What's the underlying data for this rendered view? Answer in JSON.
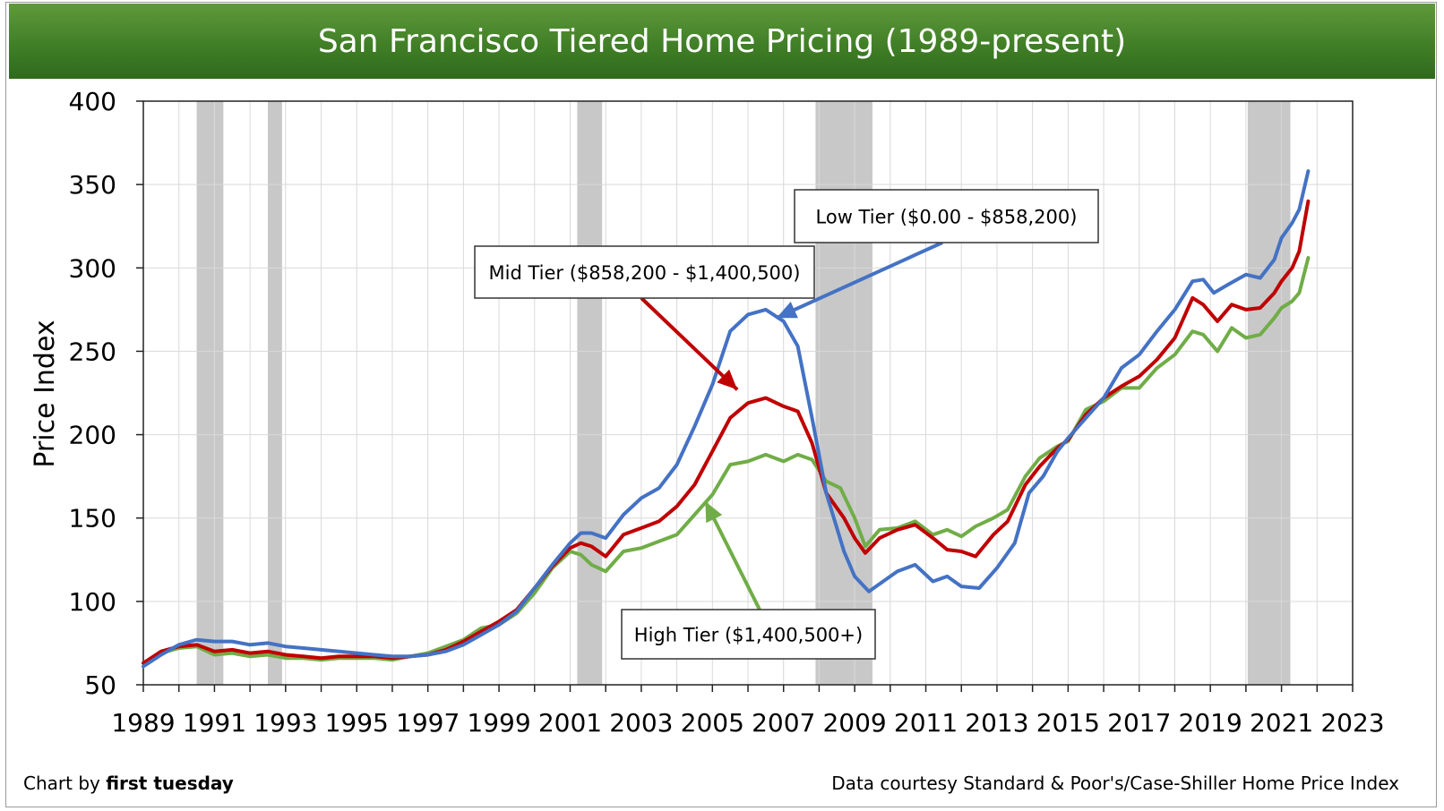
{
  "title": "San Francisco Tiered Home Pricing (1989-present)",
  "footer": {
    "credit_prefix": "Chart by",
    "credit_name": "first tuesday",
    "source": "Data courtesy Standard & Poor's/Case-Shiller Home Price Index"
  },
  "colors": {
    "low": "#4472c4",
    "mid": "#c00000",
    "high": "#70ad47",
    "recession": "#c8c8c8",
    "banner": "#3f7d27"
  },
  "chart_data": {
    "type": "line",
    "ylabel": "Price Index",
    "xlabel": "",
    "xlim": [
      1989,
      2023
    ],
    "ylim": [
      50,
      400
    ],
    "x_ticks": [
      1989,
      1991,
      1993,
      1995,
      1997,
      1999,
      2001,
      2003,
      2005,
      2007,
      2009,
      2011,
      2013,
      2015,
      2017,
      2019,
      2021,
      2023
    ],
    "y_ticks": [
      50,
      100,
      150,
      200,
      250,
      300,
      350,
      400
    ],
    "grid": true,
    "recessions": [
      [
        1990.5,
        1991.25
      ],
      [
        1992.5,
        1992.9
      ],
      [
        2001.2,
        2001.9
      ],
      [
        2007.9,
        2009.5
      ],
      [
        2020.05,
        2021.25
      ]
    ],
    "series": [
      {
        "name": "Low Tier ($0.00 - $858,200)",
        "color": "#4472c4",
        "points": [
          [
            1989.0,
            61
          ],
          [
            1989.5,
            68
          ],
          [
            1990.0,
            74
          ],
          [
            1990.5,
            77
          ],
          [
            1991.0,
            76
          ],
          [
            1991.5,
            76
          ],
          [
            1992.0,
            74
          ],
          [
            1992.5,
            75
          ],
          [
            1993.0,
            73
          ],
          [
            1993.5,
            72
          ],
          [
            1994.0,
            71
          ],
          [
            1994.5,
            70
          ],
          [
            1995.0,
            69
          ],
          [
            1995.5,
            68
          ],
          [
            1996.0,
            67
          ],
          [
            1996.5,
            67
          ],
          [
            1997.0,
            68
          ],
          [
            1997.5,
            70
          ],
          [
            1998.0,
            74
          ],
          [
            1998.5,
            80
          ],
          [
            1999.0,
            86
          ],
          [
            1999.5,
            94
          ],
          [
            2000.0,
            108
          ],
          [
            2000.5,
            122
          ],
          [
            2001.0,
            135
          ],
          [
            2001.3,
            141
          ],
          [
            2001.6,
            141
          ],
          [
            2002.0,
            138
          ],
          [
            2002.5,
            152
          ],
          [
            2003.0,
            162
          ],
          [
            2003.5,
            168
          ],
          [
            2004.0,
            182
          ],
          [
            2004.5,
            205
          ],
          [
            2005.0,
            230
          ],
          [
            2005.5,
            262
          ],
          [
            2006.0,
            272
          ],
          [
            2006.5,
            275
          ],
          [
            2007.0,
            268
          ],
          [
            2007.4,
            253
          ],
          [
            2007.8,
            210
          ],
          [
            2008.2,
            165
          ],
          [
            2008.7,
            130
          ],
          [
            2009.0,
            115
          ],
          [
            2009.4,
            106
          ],
          [
            2009.8,
            112
          ],
          [
            2010.2,
            118
          ],
          [
            2010.7,
            122
          ],
          [
            2011.2,
            112
          ],
          [
            2011.6,
            115
          ],
          [
            2012.0,
            109
          ],
          [
            2012.5,
            108
          ],
          [
            2013.0,
            120
          ],
          [
            2013.5,
            135
          ],
          [
            2013.9,
            165
          ],
          [
            2014.3,
            175
          ],
          [
            2014.7,
            190
          ],
          [
            2015.0,
            198
          ],
          [
            2015.5,
            210
          ],
          [
            2016.0,
            222
          ],
          [
            2016.5,
            240
          ],
          [
            2017.0,
            248
          ],
          [
            2017.5,
            262
          ],
          [
            2018.0,
            275
          ],
          [
            2018.5,
            292
          ],
          [
            2018.8,
            293
          ],
          [
            2019.1,
            285
          ],
          [
            2019.5,
            290
          ],
          [
            2020.0,
            296
          ],
          [
            2020.4,
            294
          ],
          [
            2020.8,
            305
          ],
          [
            2021.0,
            318
          ],
          [
            2021.3,
            327
          ],
          [
            2021.5,
            335
          ],
          [
            2021.75,
            358
          ]
        ]
      },
      {
        "name": "Mid Tier ($858,200 - $1,400,500)",
        "color": "#c00000",
        "points": [
          [
            1989.0,
            63
          ],
          [
            1989.5,
            70
          ],
          [
            1990.0,
            73
          ],
          [
            1990.5,
            74
          ],
          [
            1991.0,
            70
          ],
          [
            1991.5,
            71
          ],
          [
            1992.0,
            69
          ],
          [
            1992.5,
            70
          ],
          [
            1993.0,
            68
          ],
          [
            1993.5,
            67
          ],
          [
            1994.0,
            66
          ],
          [
            1994.5,
            67
          ],
          [
            1995.0,
            67
          ],
          [
            1995.5,
            67
          ],
          [
            1996.0,
            66
          ],
          [
            1996.5,
            67
          ],
          [
            1997.0,
            68
          ],
          [
            1997.5,
            71
          ],
          [
            1998.0,
            76
          ],
          [
            1998.5,
            82
          ],
          [
            1999.0,
            88
          ],
          [
            1999.5,
            95
          ],
          [
            2000.0,
            108
          ],
          [
            2000.5,
            121
          ],
          [
            2001.0,
            132
          ],
          [
            2001.3,
            135
          ],
          [
            2001.6,
            133
          ],
          [
            2002.0,
            127
          ],
          [
            2002.5,
            140
          ],
          [
            2003.0,
            144
          ],
          [
            2003.5,
            148
          ],
          [
            2004.0,
            157
          ],
          [
            2004.5,
            170
          ],
          [
            2005.0,
            190
          ],
          [
            2005.5,
            210
          ],
          [
            2006.0,
            219
          ],
          [
            2006.5,
            222
          ],
          [
            2007.0,
            217
          ],
          [
            2007.4,
            214
          ],
          [
            2007.8,
            195
          ],
          [
            2008.2,
            165
          ],
          [
            2008.7,
            150
          ],
          [
            2009.0,
            138
          ],
          [
            2009.3,
            129
          ],
          [
            2009.7,
            138
          ],
          [
            2010.2,
            143
          ],
          [
            2010.7,
            146
          ],
          [
            2011.2,
            138
          ],
          [
            2011.6,
            131
          ],
          [
            2012.0,
            130
          ],
          [
            2012.4,
            127
          ],
          [
            2012.9,
            140
          ],
          [
            2013.3,
            148
          ],
          [
            2013.8,
            170
          ],
          [
            2014.2,
            181
          ],
          [
            2014.7,
            192
          ],
          [
            2015.0,
            197
          ],
          [
            2015.5,
            212
          ],
          [
            2016.0,
            222
          ],
          [
            2016.5,
            229
          ],
          [
            2017.0,
            235
          ],
          [
            2017.5,
            245
          ],
          [
            2018.0,
            258
          ],
          [
            2018.5,
            282
          ],
          [
            2018.8,
            278
          ],
          [
            2019.2,
            268
          ],
          [
            2019.6,
            278
          ],
          [
            2020.0,
            275
          ],
          [
            2020.4,
            276
          ],
          [
            2020.8,
            285
          ],
          [
            2021.0,
            292
          ],
          [
            2021.3,
            300
          ],
          [
            2021.5,
            310
          ],
          [
            2021.75,
            340
          ]
        ]
      },
      {
        "name": "High Tier ($1,400,500+)",
        "color": "#70ad47",
        "points": [
          [
            1989.0,
            63
          ],
          [
            1989.5,
            69
          ],
          [
            1990.0,
            72
          ],
          [
            1990.5,
            73
          ],
          [
            1991.0,
            68
          ],
          [
            1991.5,
            69
          ],
          [
            1992.0,
            67
          ],
          [
            1992.5,
            68
          ],
          [
            1993.0,
            66
          ],
          [
            1993.5,
            66
          ],
          [
            1994.0,
            65
          ],
          [
            1994.5,
            66
          ],
          [
            1995.0,
            66
          ],
          [
            1995.5,
            66
          ],
          [
            1996.0,
            65
          ],
          [
            1996.5,
            67
          ],
          [
            1997.0,
            69
          ],
          [
            1997.5,
            73
          ],
          [
            1998.0,
            77
          ],
          [
            1998.5,
            84
          ],
          [
            1999.0,
            86
          ],
          [
            1999.5,
            93
          ],
          [
            2000.0,
            105
          ],
          [
            2000.5,
            120
          ],
          [
            2001.0,
            130
          ],
          [
            2001.3,
            128
          ],
          [
            2001.6,
            122
          ],
          [
            2002.0,
            118
          ],
          [
            2002.5,
            130
          ],
          [
            2003.0,
            132
          ],
          [
            2003.5,
            136
          ],
          [
            2004.0,
            140
          ],
          [
            2004.5,
            152
          ],
          [
            2005.0,
            164
          ],
          [
            2005.5,
            182
          ],
          [
            2006.0,
            184
          ],
          [
            2006.5,
            188
          ],
          [
            2007.0,
            184
          ],
          [
            2007.4,
            188
          ],
          [
            2007.8,
            185
          ],
          [
            2008.2,
            172
          ],
          [
            2008.6,
            168
          ],
          [
            2009.0,
            150
          ],
          [
            2009.3,
            133
          ],
          [
            2009.7,
            143
          ],
          [
            2010.2,
            144
          ],
          [
            2010.7,
            148
          ],
          [
            2011.2,
            140
          ],
          [
            2011.6,
            143
          ],
          [
            2012.0,
            139
          ],
          [
            2012.4,
            145
          ],
          [
            2012.9,
            150
          ],
          [
            2013.3,
            155
          ],
          [
            2013.8,
            175
          ],
          [
            2014.2,
            186
          ],
          [
            2014.7,
            193
          ],
          [
            2015.0,
            196
          ],
          [
            2015.5,
            215
          ],
          [
            2016.0,
            220
          ],
          [
            2016.5,
            228
          ],
          [
            2017.0,
            228
          ],
          [
            2017.5,
            240
          ],
          [
            2018.0,
            248
          ],
          [
            2018.5,
            262
          ],
          [
            2018.8,
            260
          ],
          [
            2019.2,
            250
          ],
          [
            2019.6,
            264
          ],
          [
            2020.0,
            258
          ],
          [
            2020.4,
            260
          ],
          [
            2020.8,
            270
          ],
          [
            2021.0,
            276
          ],
          [
            2021.3,
            280
          ],
          [
            2021.5,
            285
          ],
          [
            2021.75,
            306
          ]
        ]
      }
    ],
    "annotations": [
      {
        "text": "Low Tier ($0.00 - $858,200)",
        "series": "low",
        "arrow_to": [
          2006.8,
          270
        ]
      },
      {
        "text": "Mid Tier ($858,200 - $1,400,500)",
        "series": "mid",
        "arrow_to": [
          2005.7,
          227
        ]
      },
      {
        "text": "High Tier ($1,400,500+)",
        "series": "high",
        "arrow_to": [
          2004.8,
          160
        ]
      }
    ]
  }
}
